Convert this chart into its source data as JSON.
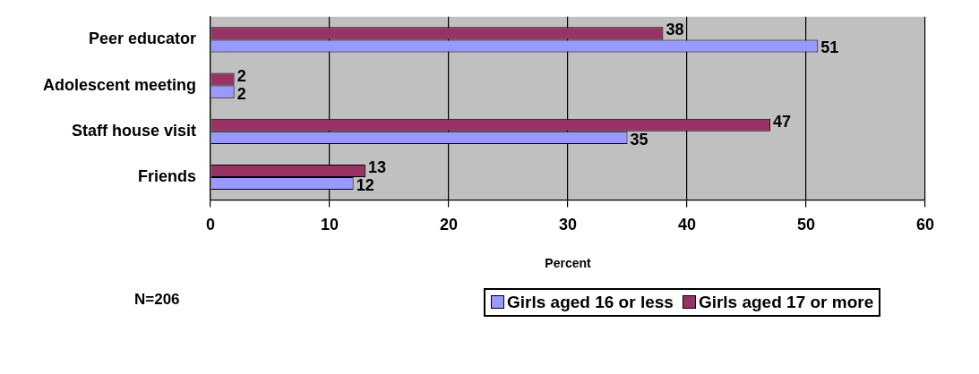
{
  "chart_data": {
    "type": "bar",
    "orientation": "horizontal",
    "xlabel": "Percent",
    "categories": [
      "Peer educator",
      "Adolescent meeting",
      "Staff house visit",
      "Friends"
    ],
    "series": [
      {
        "name": "Girls aged 16 or less",
        "color": "#9999ff",
        "values": [
          51,
          2,
          35,
          12
        ]
      },
      {
        "name": "Girls aged 17 or more",
        "color": "#993366",
        "values": [
          38,
          2,
          47,
          13
        ]
      }
    ],
    "xlim": [
      0,
      60
    ],
    "xticks": [
      0,
      10,
      20,
      30,
      40,
      50,
      60
    ],
    "grid": "x",
    "legend": "bottom",
    "data_labels": true,
    "annotations": [
      "N=206"
    ]
  }
}
